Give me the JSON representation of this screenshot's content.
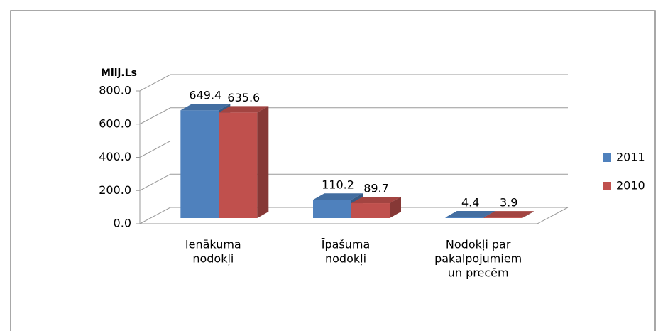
{
  "chart_data": {
    "type": "bar3d",
    "y_label": "Milj.Ls",
    "categories": [
      [
        "Ienākuma",
        "nodokļi"
      ],
      [
        "Īpašuma",
        "nodokļi"
      ],
      [
        "Nodokļi par",
        "pakalpojumiem",
        "un precēm"
      ]
    ],
    "series": [
      {
        "name": "2011",
        "color": "#4f81bd",
        "values": [
          649.4,
          110.2,
          4.4
        ]
      },
      {
        "name": "2010",
        "color": "#c0504d",
        "values": [
          635.6,
          89.7,
          3.9
        ]
      }
    ],
    "ylim": [
      0,
      800
    ],
    "yticks": [
      {
        "value": 0,
        "label": "0.0"
      },
      {
        "value": 200,
        "label": "200.0"
      },
      {
        "value": 400,
        "label": "400.0"
      },
      {
        "value": 600,
        "label": "600.0"
      },
      {
        "value": 800,
        "label": "800.0"
      }
    ],
    "grid": true,
    "legend": "right"
  }
}
